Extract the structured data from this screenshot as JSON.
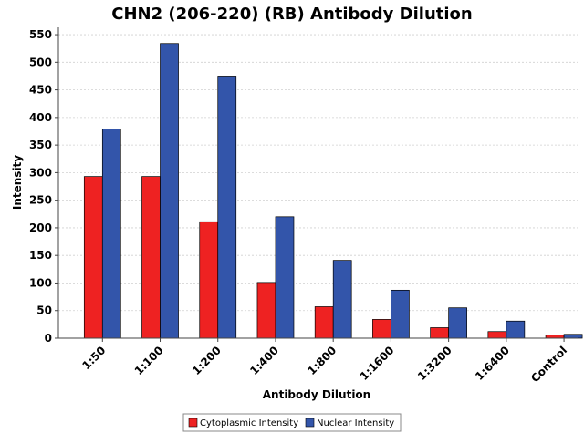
{
  "chart_data": {
    "type": "bar",
    "title": "CHN2 (206-220) (RB) Antibody Dilution",
    "xlabel": "Antibody Dilution",
    "ylabel": "Intensity",
    "categories": [
      "1:50",
      "1:100",
      "1:200",
      "1:400",
      "1:800",
      "1:1600",
      "1:3200",
      "1:6400",
      "Control"
    ],
    "series": [
      {
        "name": "Cytoplasmic Intensity",
        "color": "#ee2222",
        "values": [
          293,
          293,
          211,
          101,
          57,
          34,
          19,
          12,
          6
        ]
      },
      {
        "name": "Nuclear Intensity",
        "color": "#3355aa",
        "values": [
          379,
          534,
          475,
          220,
          141,
          87,
          55,
          31,
          7
        ]
      }
    ],
    "ylim": [
      0,
      560
    ],
    "yticks": [
      0,
      50,
      100,
      150,
      200,
      250,
      300,
      350,
      400,
      450,
      500,
      550
    ],
    "grid": true,
    "legend_position": "bottom"
  }
}
